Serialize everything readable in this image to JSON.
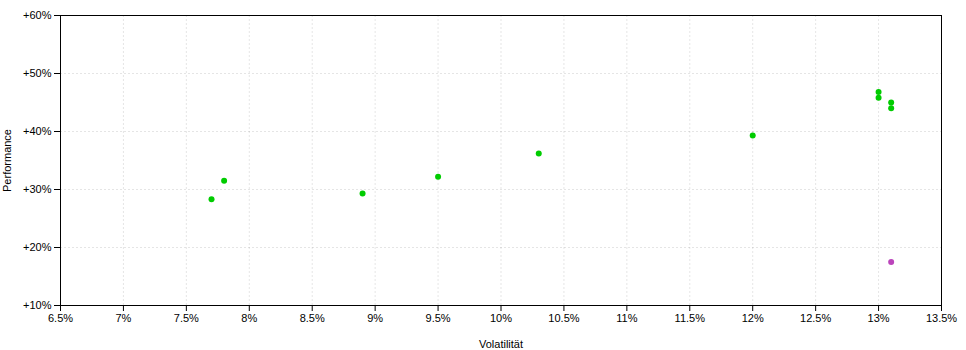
{
  "chart_data": {
    "type": "scatter",
    "xlabel": "Volatilität",
    "ylabel": "Performance",
    "xlim": [
      0.065,
      0.135
    ],
    "ylim": [
      0.1,
      0.6
    ],
    "xticks": [
      {
        "value": 0.065,
        "label": "6.5%"
      },
      {
        "value": 0.07,
        "label": "7%"
      },
      {
        "value": 0.075,
        "label": "7.5%"
      },
      {
        "value": 0.08,
        "label": "8%"
      },
      {
        "value": 0.085,
        "label": "8.5%"
      },
      {
        "value": 0.09,
        "label": "9%"
      },
      {
        "value": 0.095,
        "label": "9.5%"
      },
      {
        "value": 0.1,
        "label": "10%"
      },
      {
        "value": 0.105,
        "label": "10.5%"
      },
      {
        "value": 0.11,
        "label": "11%"
      },
      {
        "value": 0.115,
        "label": "11.5%"
      },
      {
        "value": 0.12,
        "label": "12%"
      },
      {
        "value": 0.125,
        "label": "12.5%"
      },
      {
        "value": 0.13,
        "label": "13%"
      },
      {
        "value": 0.135,
        "label": "13.5%"
      }
    ],
    "yticks": [
      {
        "value": 0.1,
        "label": "+10%"
      },
      {
        "value": 0.2,
        "label": "+20%"
      },
      {
        "value": 0.3,
        "label": "+30%"
      },
      {
        "value": 0.4,
        "label": "+40%"
      },
      {
        "value": 0.5,
        "label": "+50%"
      },
      {
        "value": 0.6,
        "label": "+60%"
      }
    ],
    "grid": true,
    "series": [
      {
        "color": "#00cc00",
        "x": [
          0.078,
          0.077,
          0.089,
          0.095,
          0.103,
          0.12,
          0.13,
          0.13,
          0.131,
          0.131
        ],
        "values": [
          0.315,
          0.283,
          0.293,
          0.322,
          0.362,
          0.393,
          0.458,
          0.468,
          0.45,
          0.44
        ]
      },
      {
        "color": "#bb44bb",
        "x": [
          0.131
        ],
        "values": [
          0.175
        ]
      }
    ]
  }
}
